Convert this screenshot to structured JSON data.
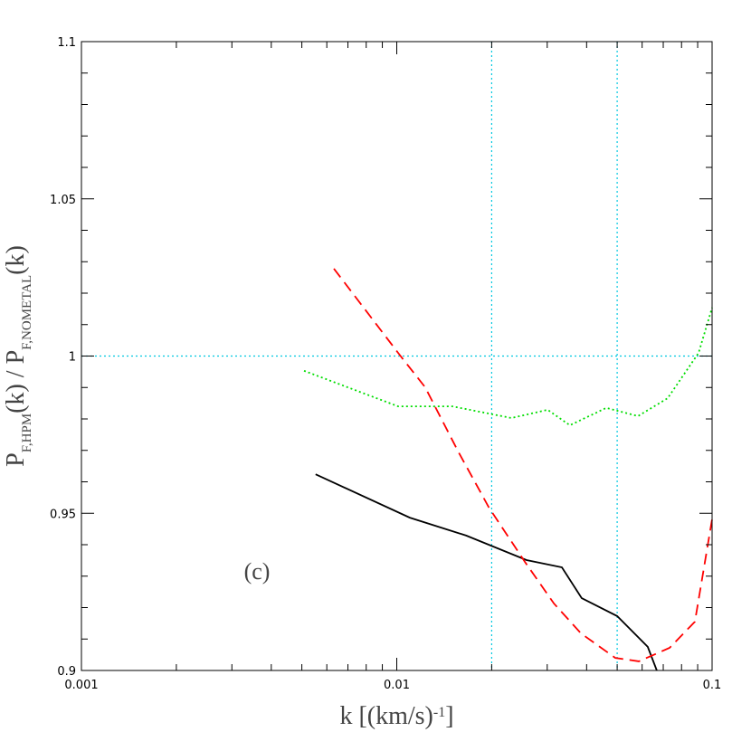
{
  "chart_data": {
    "type": "line",
    "xlabel": [
      "k  [(km/s)",
      "-1",
      "]"
    ],
    "ylabel": [
      "P",
      "F,HPM",
      "(k)  /  P",
      "F,NOMETAL",
      "(k)"
    ],
    "annotation": "(c)",
    "xlog": true,
    "xlim": [
      0.001,
      0.1
    ],
    "xticks": [
      0.001,
      0.01,
      0.1
    ],
    "ylim": [
      0.9,
      1.1
    ],
    "yticks": [
      0.9,
      0.95,
      1,
      1.05,
      1.1
    ],
    "vlines": [
      0.02,
      0.05
    ],
    "hlines": [
      1
    ],
    "ref_color": "#00c8e0",
    "series": [
      {
        "color": "#000000",
        "dash": "solid",
        "x": [
          0.00553,
          0.011,
          0.0166,
          0.0258,
          0.0334,
          0.0386,
          0.05,
          0.0625,
          0.0668
        ],
        "values": [
          0.9624,
          0.9486,
          0.9429,
          0.9351,
          0.9328,
          0.923,
          0.9173,
          0.9075,
          0.9
        ]
      },
      {
        "color": "#ff0000",
        "dash": "dashed",
        "x": [
          0.00632,
          0.0101,
          0.0123,
          0.0157,
          0.0196,
          0.0255,
          0.0315,
          0.0384,
          0.0493,
          0.0586,
          0.0733,
          0.0882,
          0.1
        ],
        "values": [
          1.0278,
          1.001,
          0.9901,
          0.9694,
          0.9518,
          0.9345,
          0.9213,
          0.9118,
          0.904,
          0.9029,
          0.9072,
          0.9155,
          0.9481
        ]
      },
      {
        "color": "#00dd00",
        "dash": "dotted",
        "x": [
          0.00508,
          0.0101,
          0.015,
          0.0231,
          0.0301,
          0.0354,
          0.0462,
          0.0582,
          0.0723,
          0.0906,
          0.1
        ],
        "values": [
          0.9953,
          0.984,
          0.984,
          0.9803,
          0.9829,
          0.978,
          0.9835,
          0.9809,
          0.9866,
          1.001,
          1.0154
        ]
      }
    ]
  }
}
